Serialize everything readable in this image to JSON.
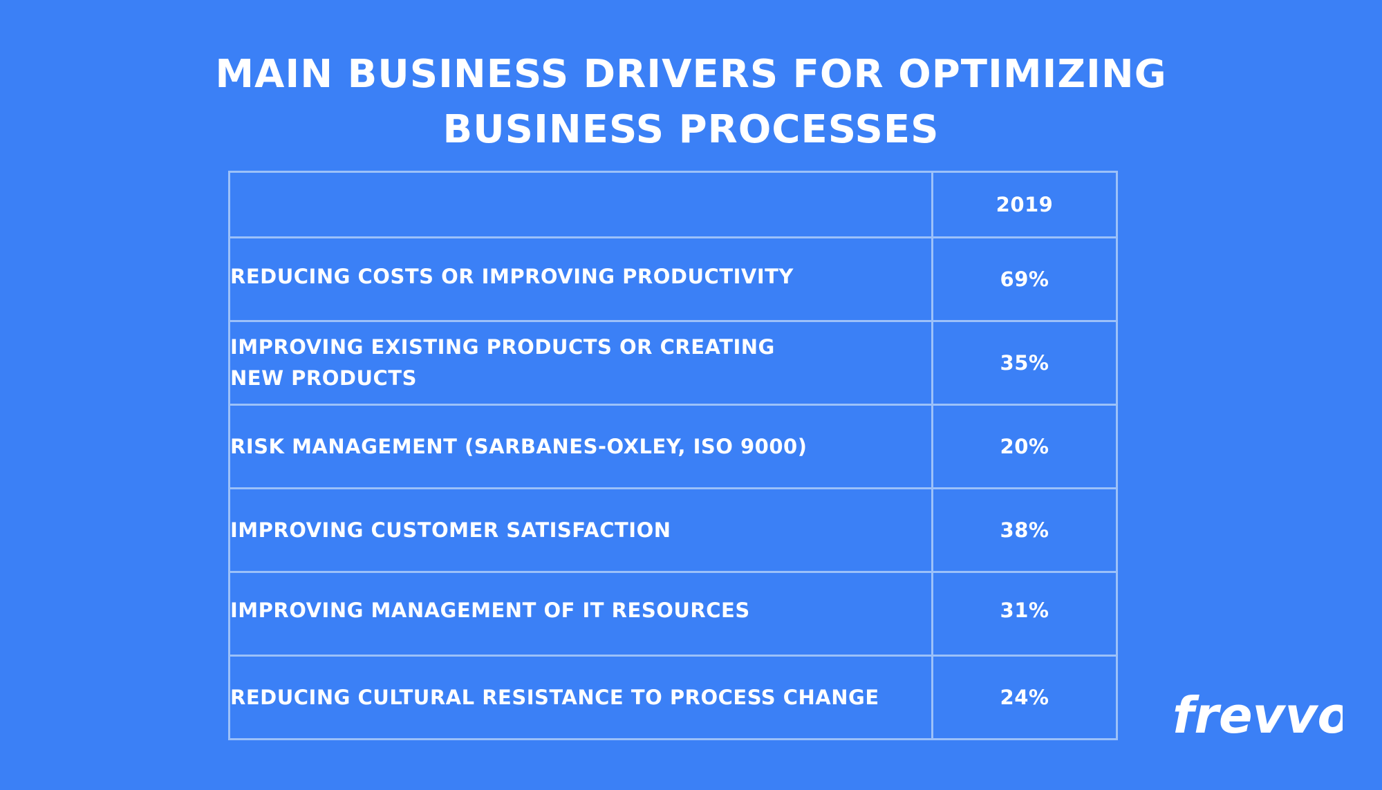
{
  "chart_data": {
    "type": "table",
    "title": "Main Business Drivers for Optimizing Business Processes",
    "title_lines": [
      "Main Business Drivers for Optimizing",
      "Business Processes"
    ],
    "columns": [
      "",
      "2019"
    ],
    "rows": [
      {
        "label": "Reducing costs or improving productivity",
        "value": "69%"
      },
      {
        "label": "Improving existing products or creating new products",
        "value": "35%"
      },
      {
        "label": "Risk management (Sarbanes-Oxley, ISO 9000)",
        "value": "20%"
      },
      {
        "label": "Improving customer satisfaction",
        "value": "38%"
      },
      {
        "label": "Improving management of IT resources",
        "value": "31%"
      },
      {
        "label": "Reducing cultural resistance to process change",
        "value": "24%"
      }
    ],
    "values": [
      69,
      35,
      20,
      38,
      31,
      24
    ]
  },
  "brand": {
    "logo_text": "frevvo"
  },
  "colors": {
    "background": "#3b80f6",
    "text": "#ffffff",
    "grid": "#9cc1f9"
  }
}
